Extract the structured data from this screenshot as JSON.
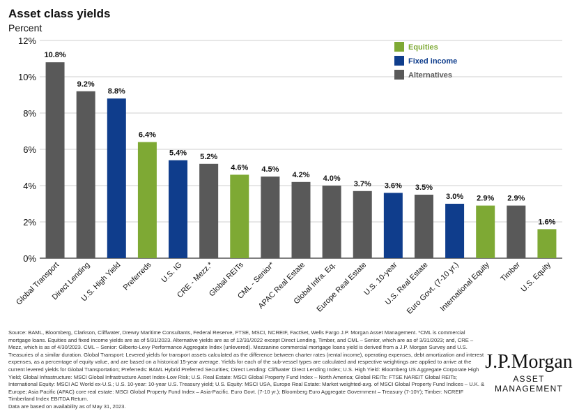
{
  "colors": {
    "equities": "#7ea934",
    "fixed_income": "#0f3d8c",
    "alternatives": "#595959",
    "grid": "#cfcfcf",
    "axis": "#333333"
  },
  "chart_data": {
    "type": "bar",
    "title": "Asset class yields",
    "subtitle": "Percent",
    "ylim": [
      0,
      12
    ],
    "yticks": [
      "0%",
      "2%",
      "4%",
      "6%",
      "8%",
      "10%",
      "12%"
    ],
    "grid": true,
    "legend_position": "top-right",
    "legend": [
      {
        "key": "equities",
        "label": "Equities"
      },
      {
        "key": "fixed_income",
        "label": "Fixed income"
      },
      {
        "key": "alternatives",
        "label": "Alternatives"
      }
    ],
    "categories": [
      "Global Transport",
      "Direct Lending",
      "U.S. High Yield",
      "Preferreds",
      "U.S. IG",
      "CRE - Mezz.*",
      "Global REITs",
      "CML - Senior*",
      "APAC Real Estate",
      "Global Infra. Eq.",
      "Europe Real Estate",
      "U.S. 10-year",
      "U.S. Real Estate",
      "Euro Govt. (7-10 yr.)",
      "International Equity",
      "Timber",
      "U.S. Equity"
    ],
    "values": [
      10.8,
      9.2,
      8.8,
      6.4,
      5.4,
      5.2,
      4.6,
      4.5,
      4.2,
      4.0,
      3.7,
      3.6,
      3.5,
      3.0,
      2.9,
      2.9,
      1.6
    ],
    "value_labels": [
      "10.8%",
      "9.2%",
      "8.8%",
      "6.4%",
      "5.4%",
      "5.2%",
      "4.6%",
      "4.5%",
      "4.2%",
      "4.0%",
      "3.7%",
      "3.6%",
      "3.5%",
      "3.0%",
      "2.9%",
      "2.9%",
      "1.6%"
    ],
    "groups": [
      "alternatives",
      "alternatives",
      "fixed_income",
      "equities",
      "fixed_income",
      "alternatives",
      "equities",
      "alternatives",
      "alternatives",
      "alternatives",
      "alternatives",
      "fixed_income",
      "alternatives",
      "fixed_income",
      "equities",
      "alternatives",
      "equities"
    ]
  },
  "source_note": "Source: BAML, Bloomberg, Clarkson, Cliffwater, Drewry Maritime Consultants, Federal Reserve, FTSE, MSCI, NCREIF, FactSet, Wells Fargo J.P. Morgan Asset Management. *CML is commercial mortgage loans. Equities and fixed income yields are as of 5/31/2023. Alternative yields are as of 12/31/2022 except Direct Lending, Timber, and CML – Senior, which are as of 3/31/2023; and, CRE – Mezz, which is as of 4/30/2023. CML – Senior: Gilberto-Levy Performance Aggregate Index (unlevered). Mezzanine commercial mortgage loans yield is derived from a J.P. Morgan Survey and U.S. Treasuries of a similar duration. Global Transport: Levered yields for transport assets calculated as the difference between charter rates (rental income), operating expenses, debt amortization and interest expenses, as a percentage of equity value, and are based on a historical 15-year average. Yields for each of the sub-vessel types are calculated and respective weightings are applied to arrive at the current levered yields for Global Transportation; Preferreds: BAML Hybrid Preferred Securities; Direct Lending: Cliffwater Direct Lending Index; U.S. High Yield: Bloomberg US Aggregate Corporate High Yield; Global Infrastructure: MSCI Global Infrastructure Asset Index-Low Risk; U.S. Real Estate: MSCI Global Property Fund Index – North America; Global REITs: FTSE NAREIT Global REITs; International Equity: MSCI AC World ex-U.S.; U.S. 10-year: 10-year U.S. Treasury yield; U.S. Equity: MSCI USA, Europe Real Estate: Market weighted-avg. of MSCI Global Property Fund Indices – U.K. & Europe; Asia Pacific (APAC) core real estate: MSCI Global Property Fund Index – Asia-Pacific. Euro Govt. (7-10 yr.); Bloomberg Euro Aggregate Government – Treasury (7-10Y); Timber: NCREIF Timberland Index EBITDA Return.",
  "source_note_2": "Data are based on availability as of May 31, 2023.",
  "logo": {
    "main": "J.P.Morgan",
    "sub": "ASSET MANAGEMENT"
  }
}
